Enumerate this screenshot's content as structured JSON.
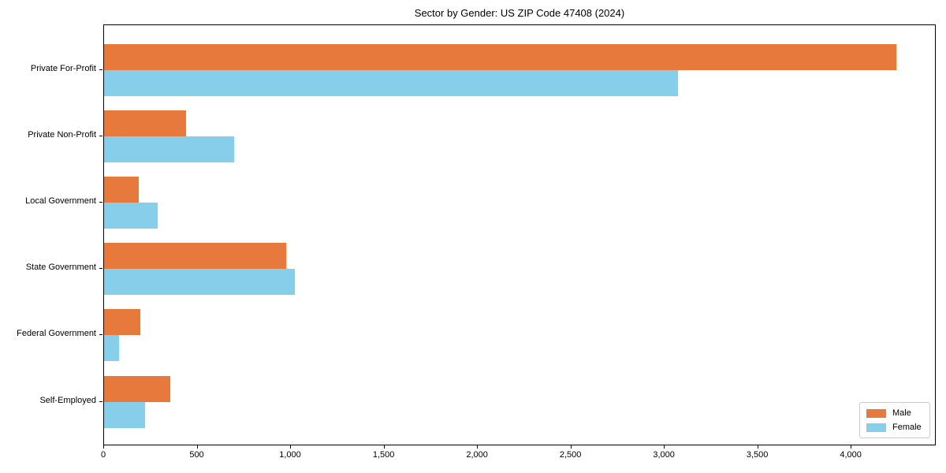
{
  "title": "Sector by Gender: US ZIP Code 47408 (2024)",
  "chart_data": {
    "type": "bar",
    "orientation": "horizontal",
    "title": "Sector by Gender: US ZIP Code 47408 (2024)",
    "categories": [
      "Private For-Profit",
      "Private Non-Profit",
      "Local Government",
      "State Government",
      "Federal Government",
      "Self-Employed"
    ],
    "series": [
      {
        "name": "Male",
        "color": "#e8793d",
        "values": [
          4240,
          440,
          185,
          975,
          195,
          355
        ]
      },
      {
        "name": "Female",
        "color": "#87ceeb",
        "values": [
          3070,
          695,
          285,
          1020,
          80,
          220
        ]
      }
    ],
    "xlabel": "",
    "ylabel": "",
    "xlim": [
      0,
      4455
    ],
    "x_ticks": [
      0,
      500,
      1000,
      1500,
      2000,
      2500,
      3000,
      3500,
      4000
    ],
    "x_tick_labels": [
      "0",
      "500",
      "1,000",
      "1,500",
      "2,000",
      "2,500",
      "3,000",
      "3,500",
      "4,000"
    ],
    "grid": false,
    "legend_position": "lower right",
    "background_color": "#ffffff",
    "text_color": "#000000"
  }
}
